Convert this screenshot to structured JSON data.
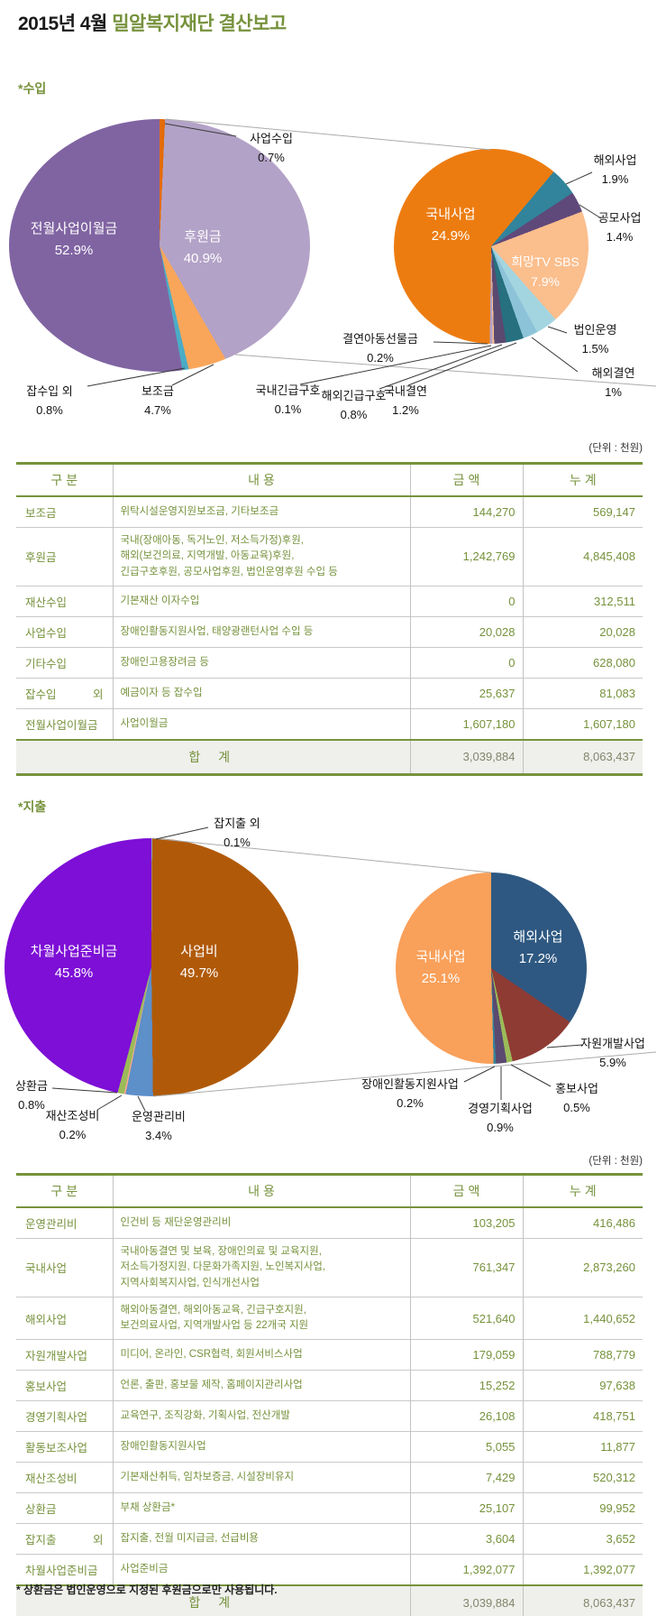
{
  "title": {
    "prefix": "2015년 4월",
    "accent": "밀알복지재단 결산보고"
  },
  "sections": {
    "income_label": "*수입",
    "expense_label": "*지출"
  },
  "unit_note": "(단위 : 천원)",
  "footnote": "* 상환금은 법인운영으로 지정된 후원금으로만 사용됩니다.",
  "colors": {
    "accent_green": "#76923C",
    "table_border_green": "#77933C",
    "grid_gray": "#C9C9C9",
    "total_row_bg": "#EFEFEC",
    "connector_gray": "#ABABAB",
    "callout_black": "#3A3A3A"
  },
  "chart_data": [
    {
      "id": "income-main",
      "type": "pie",
      "unit": "%",
      "start_angle": 0,
      "legend_position": "none",
      "slices": [
        {
          "label": "사업수입",
          "value": 0.7,
          "pct": "0.7%",
          "color": "#E36C0A"
        },
        {
          "label": "후원금",
          "value": 40.9,
          "pct": "40.9%",
          "color": "#B3A2C7"
        },
        {
          "label": "보조금",
          "value": 4.7,
          "pct": "4.7%",
          "color": "#F9A65A"
        },
        {
          "label": "잡수입 외",
          "value": 0.8,
          "pct": "0.8%",
          "color": "#4BACC6"
        },
        {
          "label": "전월사업이월금",
          "value": 52.9,
          "pct": "52.9%",
          "color": "#8064A2"
        }
      ]
    },
    {
      "id": "income-detail",
      "type": "pie",
      "unit": "%",
      "start_angle": 40,
      "legend_position": "none",
      "slices": [
        {
          "label": "해외사업",
          "value": 1.9,
          "pct": "1.9%",
          "color": "#31849B"
        },
        {
          "label": "공모사업",
          "value": 1.4,
          "pct": "1.4%",
          "color": "#5F497A"
        },
        {
          "label": "희망TV SBS",
          "value": 7.9,
          "pct": "7.9%",
          "color": "#FBBE8D"
        },
        {
          "label": "법인운영",
          "value": 1.5,
          "pct": "1.5%",
          "color": "#A3D5E0"
        },
        {
          "label": "해외결연",
          "value": 1.0,
          "pct": "1%",
          "color": "#8DC3D8"
        },
        {
          "label": "국내결연",
          "value": 1.2,
          "pct": "1.2%",
          "color": "#26707F"
        },
        {
          "label": "해외긴급구호",
          "value": 0.8,
          "pct": "0.8%",
          "color": "#5B4970"
        },
        {
          "label": "국내긴급구호",
          "value": 0.1,
          "pct": "0.1%",
          "color": "#FAC08F"
        },
        {
          "label": "결연아동선물금",
          "value": 0.2,
          "pct": "0.2%",
          "color": "#B3A2C7"
        },
        {
          "label": "국내사업",
          "value": 24.9,
          "pct": "24.9%",
          "color": "#ED7C10"
        }
      ]
    },
    {
      "id": "expense-main",
      "type": "pie",
      "unit": "%",
      "start_angle": 0,
      "legend_position": "none",
      "slices": [
        {
          "label": "잡지출 외",
          "value": 0.1,
          "pct": "0.1%",
          "color": "#8EA4B8"
        },
        {
          "label": "사업비",
          "value": 49.7,
          "pct": "49.7%",
          "color": "#B05A09"
        },
        {
          "label": "운영관리비",
          "value": 3.4,
          "pct": "3.4%",
          "color": "#5D8FC8"
        },
        {
          "label": "재산조성비",
          "value": 0.2,
          "pct": "0.2%",
          "color": "#F2A98E"
        },
        {
          "label": "상환금",
          "value": 0.8,
          "pct": "0.8%",
          "color": "#9BBB59"
        },
        {
          "label": "차월사업준비금",
          "value": 45.8,
          "pct": "45.8%",
          "color": "#7D0FD6"
        }
      ]
    },
    {
      "id": "expense-detail",
      "type": "pie",
      "unit": "%",
      "start_angle": 0,
      "legend_position": "none",
      "slices": [
        {
          "label": "해외사업",
          "value": 17.2,
          "pct": "17.2%",
          "color": "#2E5881"
        },
        {
          "label": "자원개발사업",
          "value": 5.9,
          "pct": "5.9%",
          "color": "#8E3B34"
        },
        {
          "label": "홍보사업",
          "value": 0.5,
          "pct": "0.5%",
          "color": "#9BBB59"
        },
        {
          "label": "경영기획사업",
          "value": 0.9,
          "pct": "0.9%",
          "color": "#5B4970"
        },
        {
          "label": "장애인활동지원사업",
          "value": 0.2,
          "pct": "0.2%",
          "color": "#31849B"
        },
        {
          "label": "국내사업",
          "value": 25.1,
          "pct": "25.1%",
          "color": "#F9A05A"
        }
      ]
    }
  ],
  "income_table": {
    "headers": [
      "구 분",
      "내 용",
      "금 액",
      "누 계"
    ],
    "rows": [
      {
        "category": "보조금",
        "description": "위탁시설운영지원보조금, 기타보조금",
        "amount": "144,270",
        "cumulative": "569,147"
      },
      {
        "category": "후원금",
        "description": "국내(장애아동, 독거노인, 저소득가정)후원,\n해외(보건의료, 지역개발, 아동교육)후원,\n긴급구호후원, 공모사업후원, 법인운영후원 수입 등",
        "amount": "1,242,769",
        "cumulative": "4,845,408"
      },
      {
        "category": "재산수입",
        "description": "기본재산 이자수입",
        "amount": "0",
        "cumulative": "312,511"
      },
      {
        "category": "사업수입",
        "description": "장애인활동지원사업, 태양광랜턴사업 수입 등",
        "amount": "20,028",
        "cumulative": "20,028"
      },
      {
        "category": "기타수입",
        "description": "장애인고용장려금 등",
        "amount": "0",
        "cumulative": "628,080"
      },
      {
        "category": "잡수입 외",
        "description": "예금이자 등 잡수입",
        "amount": "25,637",
        "cumulative": "81,083"
      },
      {
        "category": "전월사업이월금",
        "description": "사업이월금",
        "amount": "1,607,180",
        "cumulative": "1,607,180"
      }
    ],
    "total": {
      "label": "합 계",
      "amount": "3,039,884",
      "cumulative": "8,063,437"
    }
  },
  "expense_table": {
    "headers": [
      "구 분",
      "내 용",
      "금 액",
      "누 계"
    ],
    "rows": [
      {
        "category": "운영관리비",
        "description": "인건비 등 재단운영관리비",
        "amount": "103,205",
        "cumulative": "416,486"
      },
      {
        "category": "국내사업",
        "description": "국내아동결연 및 보육, 장애인의료 및 교육지원,\n저소득가정지원, 다문화가족지원, 노인복지사업,\n지역사회복지사업, 인식개선사업",
        "amount": "761,347",
        "cumulative": "2,873,260"
      },
      {
        "category": "해외사업",
        "description": "해외아동결연, 해외아동교육, 긴급구호지원,\n보건의료사업, 지역개발사업 등 22개국 지원",
        "amount": "521,640",
        "cumulative": "1,440,652"
      },
      {
        "category": "자원개발사업",
        "description": "미디어, 온라인, CSR협력, 회원서비스사업",
        "amount": "179,059",
        "cumulative": "788,779"
      },
      {
        "category": "홍보사업",
        "description": "언론, 출판, 홍보물 제작, 홈페이지관리사업",
        "amount": "15,252",
        "cumulative": "97,638"
      },
      {
        "category": "경영기획사업",
        "description": "교육연구, 조직강화, 기획사업, 전산개발",
        "amount": "26,108",
        "cumulative": "418,751"
      },
      {
        "category": "활동보조사업",
        "description": "장애인활동지원사업",
        "amount": "5,055",
        "cumulative": "11,877"
      },
      {
        "category": "재산조성비",
        "description": "기본재산취득, 임차보증금, 시설장비유지",
        "amount": "7,429",
        "cumulative": "520,312"
      },
      {
        "category": "상환금",
        "description": "부채 상환금*",
        "amount": "25,107",
        "cumulative": "99,952"
      },
      {
        "category": "잡지출 외",
        "description": "잡지출, 전월 미지급금, 선급비용",
        "amount": "3,604",
        "cumulative": "3,652"
      },
      {
        "category": "차월사업준비금",
        "description": "사업준비금",
        "amount": "1,392,077",
        "cumulative": "1,392,077"
      }
    ],
    "total": {
      "label": "합 계",
      "amount": "3,039,884",
      "cumulative": "8,063,437"
    }
  }
}
